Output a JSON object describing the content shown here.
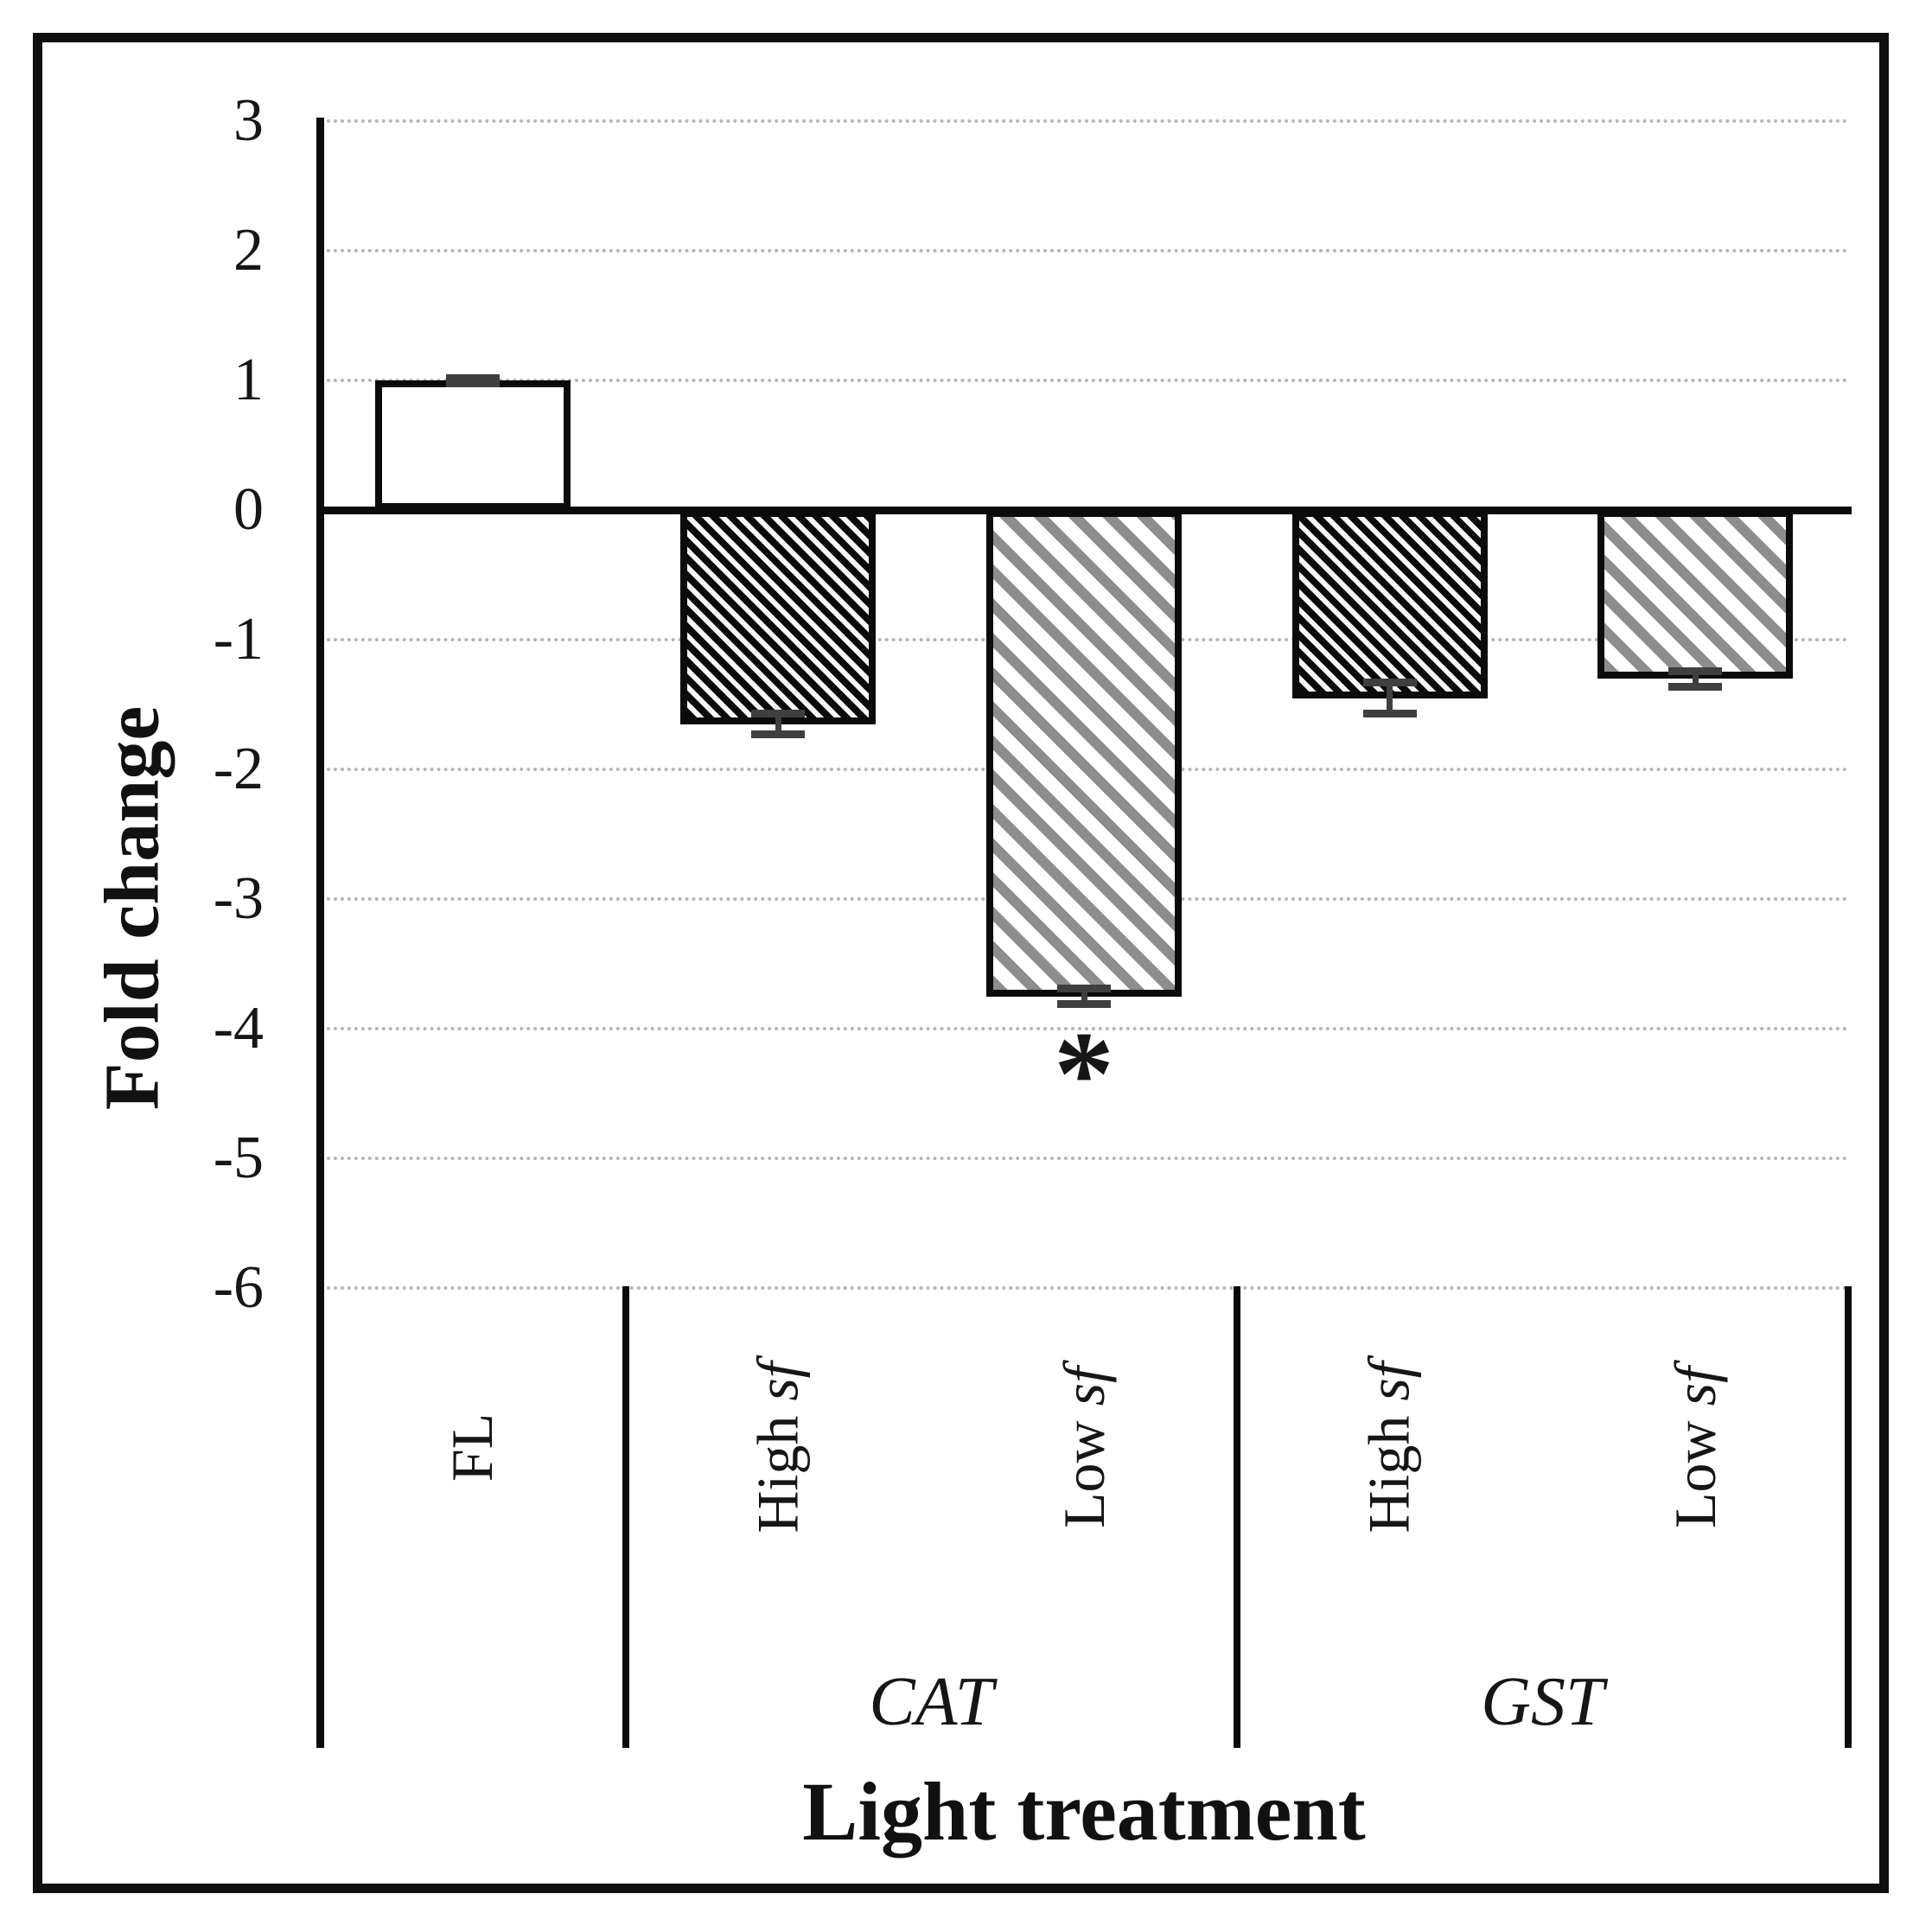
{
  "figure": {
    "background": "#ffffff",
    "border_color": "#101010"
  },
  "chart_data": {
    "type": "bar",
    "title": "",
    "xlabel": "Light treatment",
    "ylabel": "Fold change",
    "ylim": [
      -6,
      3
    ],
    "yticks": [
      3,
      2,
      1,
      0,
      -1,
      -2,
      -3,
      -4,
      -5,
      -6
    ],
    "grid": "horizontal-dotted",
    "legend": "none",
    "categories": [
      "FL",
      "High sf",
      "Low sf",
      "High sf",
      "Low sf"
    ],
    "bars": [
      {
        "category": "FL",
        "category_italic": "",
        "group": "",
        "value": 1.0,
        "error": 0.02,
        "fill": "white"
      },
      {
        "category": "High",
        "category_italic": "sf",
        "group": "CAT",
        "value": -1.65,
        "error": 0.08,
        "fill": "dense-black-hatch"
      },
      {
        "category": "Low",
        "category_italic": "sf",
        "group": "CAT",
        "value": -3.75,
        "error": 0.06,
        "fill": "gray-diagonal-stripes"
      },
      {
        "category": "High",
        "category_italic": "sf",
        "group": "GST",
        "value": -1.45,
        "error": 0.12,
        "fill": "dense-black-hatch"
      },
      {
        "category": "Low",
        "category_italic": "sf",
        "group": "GST",
        "value": -1.3,
        "error": 0.06,
        "fill": "gray-diagonal-stripes"
      }
    ],
    "groups": [
      {
        "label": "CAT",
        "from": 1,
        "to": 2
      },
      {
        "label": "GST",
        "from": 3,
        "to": 4
      }
    ],
    "divider_slots": [
      1,
      3,
      5
    ],
    "annotations": [
      {
        "text": "*",
        "bar_index": 2,
        "y": -4.35
      }
    ],
    "colors": {
      "bar_outline": "#0b0b0b",
      "axis": "#0b0b0b",
      "gridline": "#b6b6b6",
      "hatch_gray": "#8d8d8d",
      "error_bar": "#3f3f3f"
    }
  }
}
